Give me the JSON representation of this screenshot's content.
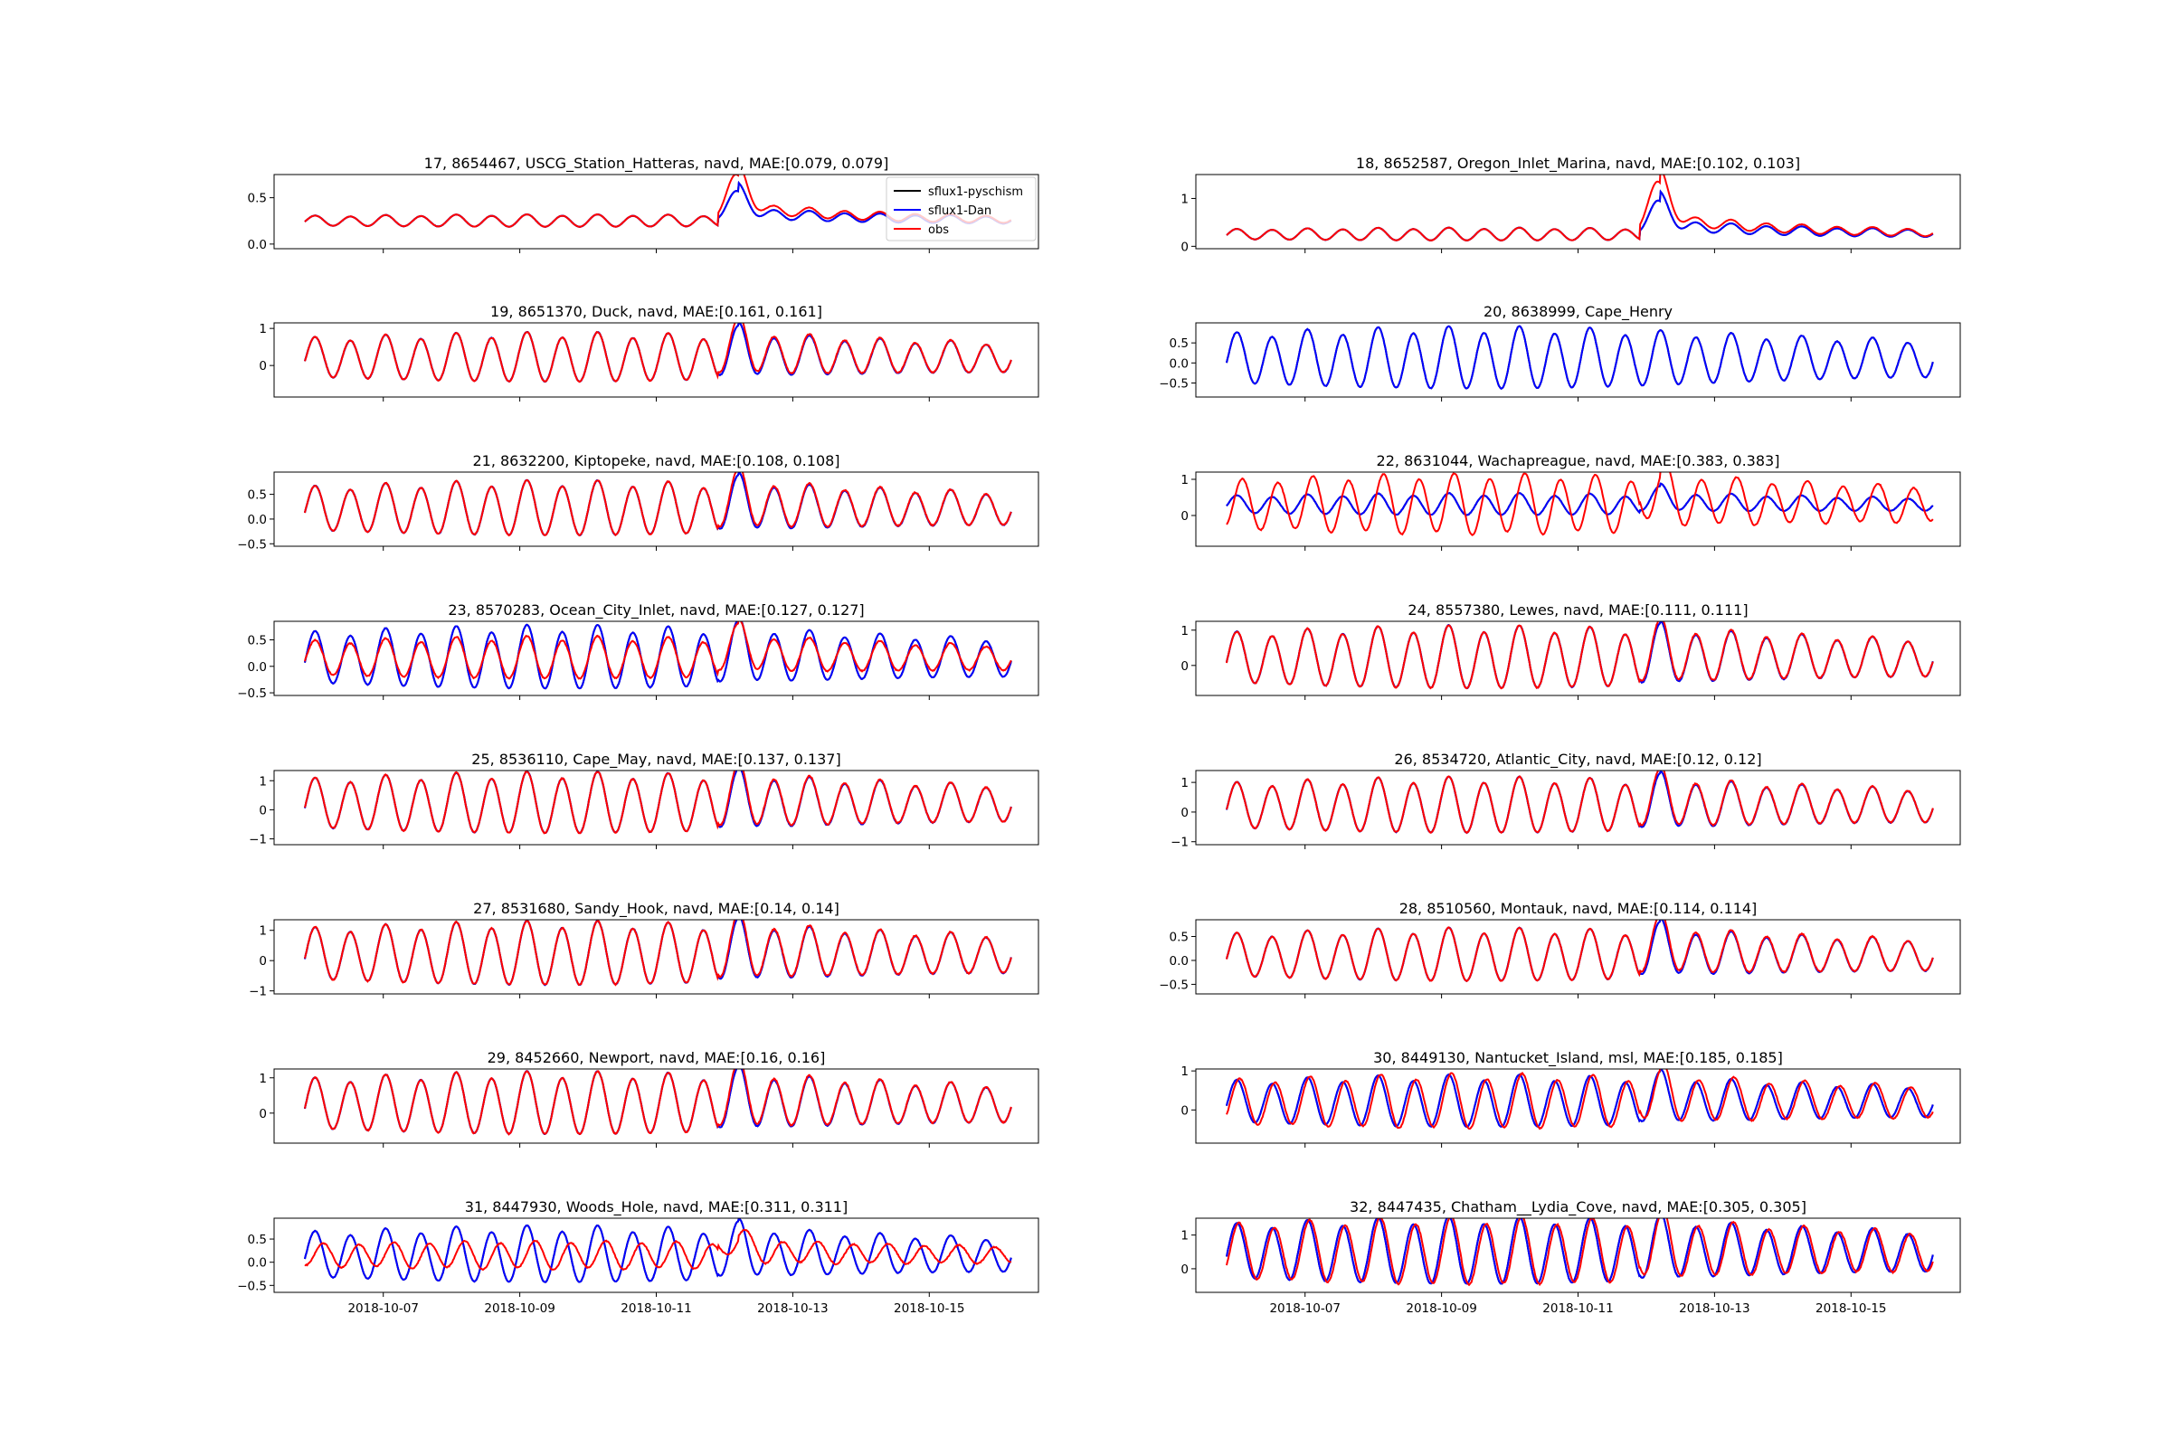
{
  "chart_data": {
    "type": "line",
    "x_axis": {
      "start": "2018-10-06",
      "end": "2018-10-16",
      "tick_labels": [
        "2018-10-07",
        "2018-10-09",
        "2018-10-11",
        "2018-10-13",
        "2018-10-15"
      ]
    },
    "series_styles": {
      "sflux1-pyschism": "#000000",
      "sflux1-Dan": "#0000ff",
      "obs": "#ff0000"
    },
    "legend": {
      "entries": [
        "sflux1-pyschism",
        "sflux1-Dan",
        "obs"
      ],
      "location": "upper right of first panel"
    },
    "panels": [
      {
        "title": "17, 8654467, USCG_Station_Hatteras, navd, MAE:[0.079, 0.079]",
        "ylim": [
          -0.05,
          0.75
        ],
        "yticks": [
          0.0,
          0.5
        ],
        "ytick_labels": [
          "0.0",
          "0.5"
        ],
        "amp": 0.06,
        "offset": 0.25,
        "model_amp_factor": 1.0,
        "obs_amp_factor": 1.0,
        "phase_shift": 0.0,
        "surge_peak": 0.45,
        "has_obs": true,
        "legend": true
      },
      {
        "title": "18, 8652587, Oregon_Inlet_Marina, navd, MAE:[0.102, 0.103]",
        "ylim": [
          -0.05,
          1.5
        ],
        "yticks": [
          0,
          1
        ],
        "ytick_labels": [
          "0",
          "1"
        ],
        "amp": 0.12,
        "offset": 0.25,
        "model_amp_factor": 1.0,
        "obs_amp_factor": 1.0,
        "phase_shift": 0.0,
        "surge_peak": 1.0,
        "has_obs": true,
        "legend": false
      },
      {
        "title": "19, 8651370, Duck, navd, MAE:[0.161, 0.161]",
        "ylim": [
          -0.85,
          1.15
        ],
        "yticks": [
          0,
          1
        ],
        "ytick_labels": [
          "0",
          "1"
        ],
        "amp": 0.6,
        "offset": 0.2,
        "model_amp_factor": 1.0,
        "obs_amp_factor": 1.0,
        "phase_shift": 0.0,
        "surge_peak": 0.45,
        "has_obs": true,
        "legend": false
      },
      {
        "title": "20, 8638999, Cape_Henry",
        "ylim": [
          -0.85,
          1.0
        ],
        "yticks": [
          -0.5,
          0.0,
          0.5
        ],
        "ytick_labels": [
          "−0.5",
          "0.0",
          "0.5"
        ],
        "amp": 0.7,
        "offset": 0.1,
        "model_amp_factor": 1.0,
        "obs_amp_factor": 1.0,
        "phase_shift": 0.0,
        "surge_peak": 0.0,
        "has_obs": false,
        "legend": false
      },
      {
        "title": "21, 8632200, Kiptopeke, navd, MAE:[0.108, 0.108]",
        "ylim": [
          -0.55,
          0.95
        ],
        "yticks": [
          -0.5,
          0.0,
          0.5
        ],
        "ytick_labels": [
          "−0.5",
          "0.0",
          "0.5"
        ],
        "amp": 0.5,
        "offset": 0.2,
        "model_amp_factor": 1.0,
        "obs_amp_factor": 1.0,
        "phase_shift": 0.0,
        "surge_peak": 0.3,
        "has_obs": true,
        "legend": false
      },
      {
        "title": "22, 8631044, Wachapreague, navd, MAE:[0.383, 0.383]",
        "ylim": [
          -0.85,
          1.2
        ],
        "yticks": [
          0,
          1
        ],
        "ytick_labels": [
          "0",
          "1"
        ],
        "amp": 0.6,
        "offset": 0.3,
        "model_amp_factor": 0.45,
        "obs_amp_factor": 1.25,
        "phase_shift": 2.0,
        "surge_peak": 0.4,
        "has_obs": true,
        "legend": false
      },
      {
        "title": "23, 8570283, Ocean_City_Inlet, navd, MAE:[0.127, 0.127]",
        "ylim": [
          -0.55,
          0.85
        ],
        "yticks": [
          -0.5,
          0.0,
          0.5
        ],
        "ytick_labels": [
          "−0.5",
          "0.0",
          "0.5"
        ],
        "amp": 0.45,
        "offset": 0.15,
        "model_amp_factor": 1.2,
        "obs_amp_factor": 0.8,
        "phase_shift": 0.0,
        "surge_peak": 0.3,
        "has_obs": true,
        "legend": false
      },
      {
        "title": "24, 8557380, Lewes, navd, MAE:[0.111, 0.111]",
        "ylim": [
          -0.85,
          1.25
        ],
        "yticks": [
          0,
          1
        ],
        "ytick_labels": [
          "0",
          "1"
        ],
        "amp": 0.8,
        "offset": 0.2,
        "model_amp_factor": 1.0,
        "obs_amp_factor": 1.0,
        "phase_shift": 0.0,
        "surge_peak": 0.3,
        "has_obs": true,
        "legend": false
      },
      {
        "title": "25, 8536110, Cape_May, navd, MAE:[0.137, 0.137]",
        "ylim": [
          -1.2,
          1.35
        ],
        "yticks": [
          -1,
          0,
          1
        ],
        "ytick_labels": [
          "−1",
          "0",
          "1"
        ],
        "amp": 0.95,
        "offset": 0.2,
        "model_amp_factor": 1.0,
        "obs_amp_factor": 1.0,
        "phase_shift": 0.0,
        "surge_peak": 0.4,
        "has_obs": true,
        "legend": false
      },
      {
        "title": "26, 8534720, Atlantic_City, navd, MAE:[0.12, 0.12]",
        "ylim": [
          -1.1,
          1.4
        ],
        "yticks": [
          -1,
          0,
          1
        ],
        "ytick_labels": [
          "−1",
          "0",
          "1"
        ],
        "amp": 0.85,
        "offset": 0.2,
        "model_amp_factor": 1.0,
        "obs_amp_factor": 1.0,
        "phase_shift": 0.0,
        "surge_peak": 0.4,
        "has_obs": true,
        "legend": false
      },
      {
        "title": "27, 8531680, Sandy_Hook, navd, MAE:[0.14, 0.14]",
        "ylim": [
          -1.1,
          1.35
        ],
        "yticks": [
          -1,
          0,
          1
        ],
        "ytick_labels": [
          "−1",
          "0",
          "1"
        ],
        "amp": 0.95,
        "offset": 0.2,
        "model_amp_factor": 1.0,
        "obs_amp_factor": 1.0,
        "phase_shift": 0.0,
        "surge_peak": 0.4,
        "has_obs": true,
        "legend": false
      },
      {
        "title": "28, 8510560, Montauk, navd, MAE:[0.114, 0.114]",
        "ylim": [
          -0.7,
          0.85
        ],
        "yticks": [
          -0.5,
          0.0,
          0.5
        ],
        "ytick_labels": [
          "−0.5",
          "0.0",
          "0.5"
        ],
        "amp": 0.5,
        "offset": 0.1,
        "model_amp_factor": 1.0,
        "obs_amp_factor": 1.0,
        "phase_shift": 0.0,
        "surge_peak": 0.35,
        "has_obs": true,
        "legend": false
      },
      {
        "title": "29, 8452660, Newport, navd, MAE:[0.16, 0.16]",
        "ylim": [
          -0.85,
          1.25
        ],
        "yticks": [
          0,
          1
        ],
        "ytick_labels": [
          "0",
          "1"
        ],
        "amp": 0.8,
        "offset": 0.25,
        "model_amp_factor": 1.0,
        "obs_amp_factor": 1.0,
        "phase_shift": 0.0,
        "surge_peak": 0.4,
        "has_obs": true,
        "legend": false
      },
      {
        "title": "30, 8449130, Nantucket_Island, msl, MAE:[0.185, 0.185]",
        "ylim": [
          -0.85,
          1.05
        ],
        "yticks": [
          0,
          1
        ],
        "ytick_labels": [
          "0",
          "1"
        ],
        "amp": 0.6,
        "offset": 0.2,
        "model_amp_factor": 1.0,
        "obs_amp_factor": 1.05,
        "phase_shift": 1.0,
        "surge_peak": 0.3,
        "has_obs": true,
        "legend": false
      },
      {
        "title": "31, 8447930, Woods_Hole, navd, MAE:[0.311, 0.311]",
        "ylim": [
          -0.65,
          0.95
        ],
        "yticks": [
          -0.5,
          0.0,
          0.5
        ],
        "ytick_labels": [
          "−0.5",
          "0.0",
          "0.5"
        ],
        "amp": 0.55,
        "offset": 0.15,
        "model_amp_factor": 1.0,
        "obs_amp_factor": 0.5,
        "phase_shift": 3.0,
        "surge_peak": 0.3,
        "has_obs": true,
        "legend": false
      },
      {
        "title": "32, 8447435, Chatham__Lydia_Cove, navd, MAE:[0.305, 0.305]",
        "ylim": [
          -0.7,
          1.5
        ],
        "yticks": [
          0,
          1
        ],
        "ytick_labels": [
          "0",
          "1"
        ],
        "amp": 0.9,
        "offset": 0.5,
        "model_amp_factor": 1.0,
        "obs_amp_factor": 1.0,
        "phase_shift": 0.8,
        "surge_peak": 0.3,
        "has_obs": true,
        "legend": false
      }
    ]
  }
}
